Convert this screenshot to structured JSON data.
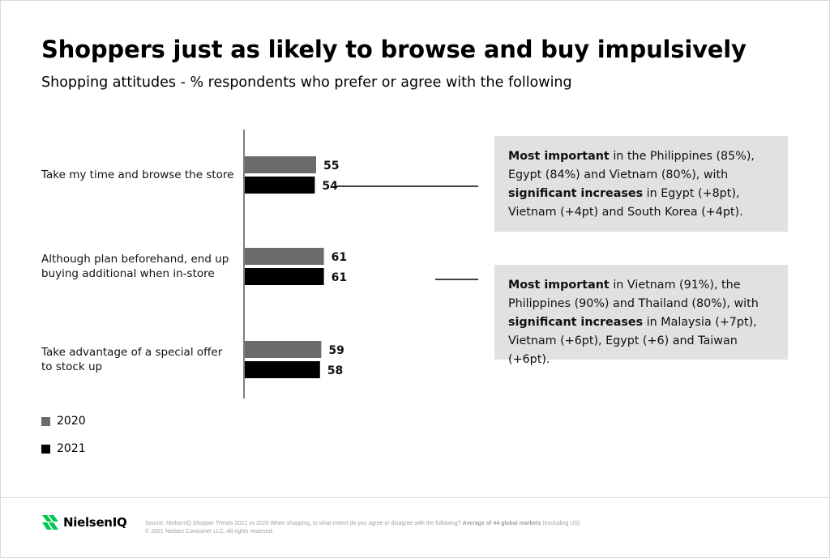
{
  "header": {
    "title": "Shoppers just as likely to browse and buy impulsively",
    "subtitle": "Shopping attitudes - % respondents who prefer or agree with the following"
  },
  "chart_data": {
    "type": "bar",
    "orientation": "horizontal",
    "categories": [
      "Take my time and browse the store",
      "Although plan beforehand, end up buying additional when in-store",
      "Take advantage of a special offer to stock up"
    ],
    "category_lines": [
      [
        "Take my time and browse the store"
      ],
      [
        "Although plan beforehand, end up",
        "buying additional when in-store"
      ],
      [
        "Take advantage of a special offer",
        "to stock up"
      ]
    ],
    "series": [
      {
        "name": "2020",
        "values": [
          55,
          61,
          59
        ],
        "color": "#6b6b6b"
      },
      {
        "name": "2021",
        "values": [
          54,
          61,
          58
        ],
        "color": "#000000"
      }
    ],
    "xlim": [
      0,
      100
    ],
    "grid": false,
    "legend": "bottom-left",
    "value_labels": true
  },
  "notes": [
    {
      "parts": [
        {
          "text": "Most important",
          "bold": true
        },
        {
          "text": " in the Philippines (85%), Egypt (84%) and Vietnam (80%), with ",
          "bold": false
        },
        {
          "text": "significant increases",
          "bold": true
        },
        {
          "text": " in Egypt (+8pt), Vietnam (+4pt) and South Korea (+4pt).",
          "bold": false
        }
      ]
    },
    {
      "parts": [
        {
          "text": "Most important",
          "bold": true
        },
        {
          "text": " in Vietnam (91%), the Philippines (90%) and Thailand (80%), with ",
          "bold": false
        },
        {
          "text": "significant increases",
          "bold": true
        },
        {
          "text": " in Malaysia (+7pt), Vietnam (+6pt), Egypt (+6) and Taiwan (+6pt).",
          "bold": false
        }
      ]
    }
  ],
  "footer": {
    "brand": "NielsenIQ",
    "brand_color": "#00c853",
    "source_prefix": "Source: NielsenIQ Shopper Trends 2021 vs 2020  When shopping, to what extent do you agree or disagree with the following? ",
    "source_bold": "Average of 44 global markets",
    "source_suffix": " (excluding US)",
    "copyright": "© 2021 Nielsen Consumer LLC. All rights reserved."
  }
}
